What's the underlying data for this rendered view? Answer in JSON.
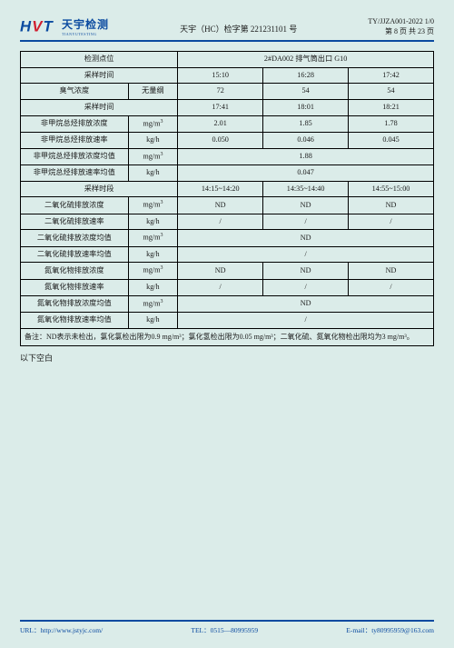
{
  "header": {
    "logo_text": "HVT",
    "logo_cn": "天宇检测",
    "logo_sub": "TIANYUTESTING",
    "doc_center": "天宇（HC）检字第 221231101 号",
    "doc_code": "TY/JJZA001-2022 1/0",
    "page_info": "第 8 页 共 23 页"
  },
  "table": {
    "row_point": {
      "label": "检测点位",
      "span_value": "2#DA002 排气筒出口 G10"
    },
    "row_time1": {
      "label": "采样时间",
      "v1": "15:10",
      "v2": "16:28",
      "v3": "17:42"
    },
    "row_odor": {
      "label": "臭气浓度",
      "unit": "无量纲",
      "v1": "72",
      "v2": "54",
      "v3": "54"
    },
    "row_time2": {
      "label": "采样时间",
      "v1": "17:41",
      "v2": "18:01",
      "v3": "18:21"
    },
    "row_nmhc_c": {
      "label": "非甲烷总烃排放浓度",
      "unit": "mg/m",
      "v1": "2.01",
      "v2": "1.85",
      "v3": "1.78"
    },
    "row_nmhc_r": {
      "label": "非甲烷总烃排放速率",
      "unit": "kg/h",
      "v1": "0.050",
      "v2": "0.046",
      "v3": "0.045"
    },
    "row_nmhc_ca": {
      "label": "非甲烷总烃排放浓度均值",
      "unit": "mg/m",
      "span_value": "1.88"
    },
    "row_nmhc_ra": {
      "label": "非甲烷总烃排放速率均值",
      "unit": "kg/h",
      "span_value": "0.047"
    },
    "row_period": {
      "label": "采样时段",
      "v1": "14:15~14:20",
      "v2": "14:35~14:40",
      "v3": "14:55~15:00"
    },
    "row_so2_c": {
      "label": "二氧化硫排放浓度",
      "unit": "mg/m",
      "v1": "ND",
      "v2": "ND",
      "v3": "ND"
    },
    "row_so2_r": {
      "label": "二氧化硫排放速率",
      "unit": "kg/h",
      "v1": "/",
      "v2": "/",
      "v3": "/"
    },
    "row_so2_ca": {
      "label": "二氧化硫排放浓度均值",
      "unit": "mg/m",
      "span_value": "ND"
    },
    "row_so2_ra": {
      "label": "二氧化硫排放速率均值",
      "unit": "kg/h",
      "span_value": "/"
    },
    "row_nox_c": {
      "label": "氮氧化物排放浓度",
      "unit": "mg/m",
      "v1": "ND",
      "v2": "ND",
      "v3": "ND"
    },
    "row_nox_r": {
      "label": "氮氧化物排放速率",
      "unit": "kg/h",
      "v1": "/",
      "v2": "/",
      "v3": "/"
    },
    "row_nox_ca": {
      "label": "氮氧化物排放浓度均值",
      "unit": "mg/m",
      "span_value": "ND"
    },
    "row_nox_ra": {
      "label": "氮氧化物排放速率均值",
      "unit": "kg/h",
      "span_value": "/"
    }
  },
  "note": "备注：ND表示未检出，氯化氯检出限为0.9 mg/m³；氯化氢检出限为0.05 mg/m³；二氧化硫、氮氧化物检出限均为3 mg/m³。",
  "below_blank": "以下空白",
  "footer": {
    "url_label": "URL：",
    "url": "http://www.jstyjc.com/",
    "tel_label": "TEL：",
    "tel": "0515—80995959",
    "email_label": "E-mail：",
    "email": "ty80995959@163.com"
  }
}
